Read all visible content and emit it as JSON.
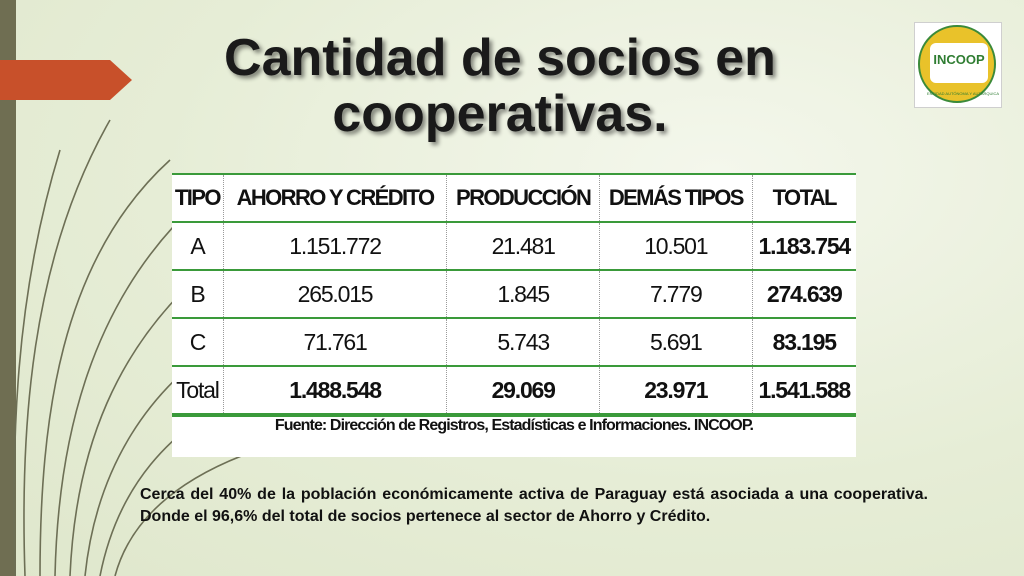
{
  "slide": {
    "title": "Cantidad de socios en cooperativas.",
    "logo": {
      "text": "INCOOP",
      "caption": "ENTIDAD AUTÓNOMA Y AUTÁRQUICA"
    },
    "table": {
      "headers": [
        "TIPO",
        "AHORRO Y CRÉDITO",
        "PRODUCCIÓN",
        "DEMÁS TIPOS",
        "TOTAL"
      ],
      "rows": [
        [
          "A",
          "1.151.772",
          "21.481",
          "10.501",
          "1.183.754"
        ],
        [
          "B",
          "265.015",
          "1.845",
          "7.779",
          "274.639"
        ],
        [
          "C",
          "71.761",
          "5.743",
          "5.691",
          "83.195"
        ],
        [
          "Total",
          "1.488.548",
          "29.069",
          "23.971",
          "1.541.588"
        ]
      ],
      "source": "Fuente: Dirección de Registros, Estadísticas e Informaciones. INCOOP."
    },
    "note": "Cerca del 40% de la población económicamente activa de Paraguay está asociada a una cooperativa. Donde el 96,6% del total de socios pertenece al sector de Ahorro y Crédito."
  },
  "colors": {
    "accent_arrow": "#c8502a",
    "side_bar": "#6f6e52",
    "table_rule": "#3a9a3a"
  }
}
